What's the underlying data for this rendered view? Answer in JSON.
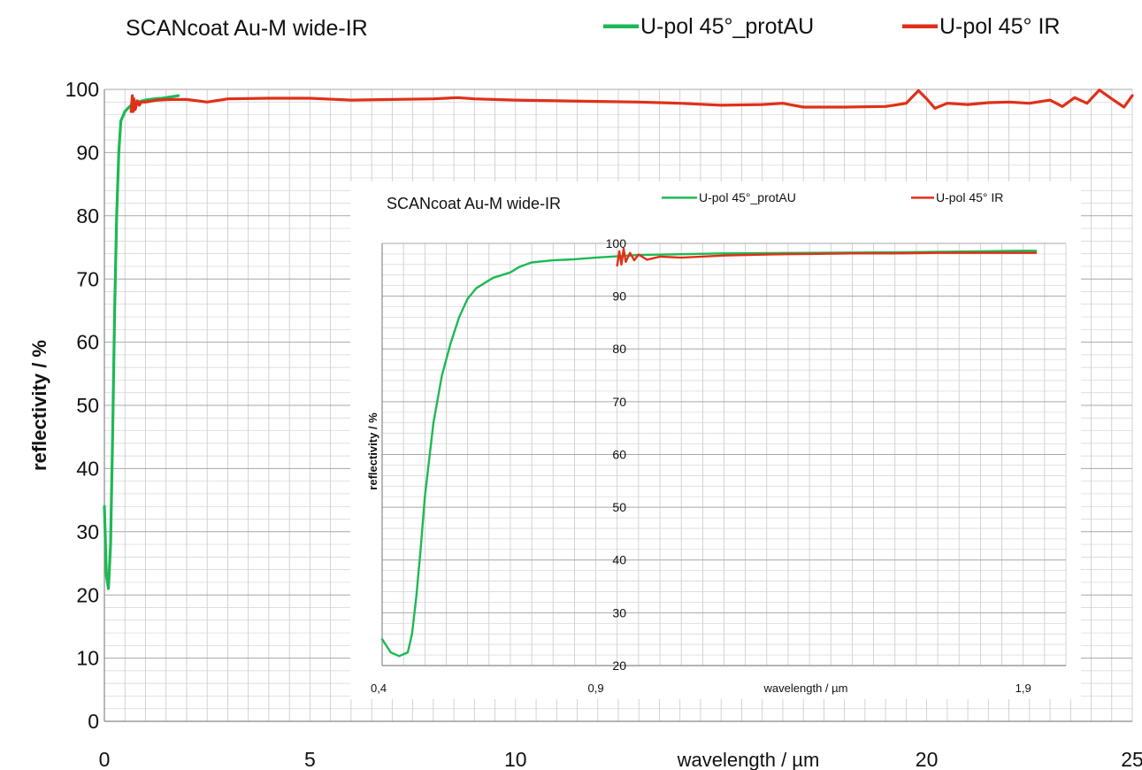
{
  "chart_data": [
    {
      "type": "line",
      "title": "SCANcoat Au-M wide-IR",
      "xlabel": "wavelength / µm",
      "ylabel": "reflectivity / %",
      "xlim": [
        0,
        25
      ],
      "ylim": [
        0,
        100
      ],
      "grid": true,
      "legend": "top-right",
      "x_ticks": [
        {
          "value": 0,
          "label": "0"
        },
        {
          "value": 5,
          "label": "5"
        },
        {
          "value": 10,
          "label": "10"
        },
        {
          "value": 20,
          "label": "20"
        },
        {
          "value": 25,
          "label": "25"
        }
      ],
      "y_ticks": [
        {
          "value": 0,
          "label": "0"
        },
        {
          "value": 10,
          "label": "10"
        },
        {
          "value": 20,
          "label": "20"
        },
        {
          "value": 30,
          "label": "30"
        },
        {
          "value": 40,
          "label": "40"
        },
        {
          "value": 50,
          "label": "50"
        },
        {
          "value": 60,
          "label": "60"
        },
        {
          "value": 70,
          "label": "70"
        },
        {
          "value": 80,
          "label": "80"
        },
        {
          "value": 90,
          "label": "90"
        },
        {
          "value": 100,
          "label": "100"
        }
      ],
      "series": [
        {
          "name": "U-pol 45°_protAU",
          "color": "#1db954",
          "x": [
            0.0,
            0.05,
            0.1,
            0.15,
            0.2,
            0.25,
            0.3,
            0.35,
            0.4,
            0.5,
            0.6,
            0.7,
            0.8,
            1.0,
            1.2,
            1.4,
            1.6,
            1.8
          ],
          "y": [
            34,
            23,
            21,
            28,
            45,
            65,
            80,
            90,
            95,
            96.5,
            97.2,
            97.8,
            98,
            98.3,
            98.5,
            98.6,
            98.8,
            99
          ]
        },
        {
          "name": "U-pol 45° IR",
          "color": "#e03018",
          "x": [
            0.65,
            0.68,
            0.7,
            0.72,
            0.75,
            0.8,
            0.85,
            0.9,
            1.0,
            1.3,
            1.6,
            2.0,
            2.5,
            3,
            4,
            5,
            6,
            7,
            8,
            8.6,
            9,
            10,
            11,
            12,
            13,
            14,
            15,
            16,
            16.5,
            17,
            18,
            19,
            19.5,
            19.8,
            20.0,
            20.2,
            20.5,
            21,
            21.5,
            22,
            22.5,
            23,
            23.3,
            23.6,
            23.9,
            24.2,
            24.5,
            24.8,
            25.0
          ],
          "y": [
            96.5,
            99,
            96.5,
            98.5,
            96.8,
            98.2,
            97.5,
            98,
            98,
            98.3,
            98.4,
            98.4,
            98,
            98.5,
            98.6,
            98.6,
            98.3,
            98.4,
            98.5,
            98.7,
            98.5,
            98.3,
            98.2,
            98.1,
            98,
            97.8,
            97.5,
            97.6,
            97.8,
            97.2,
            97.2,
            97.3,
            97.8,
            99.8,
            98.5,
            97,
            97.8,
            97.6,
            97.9,
            98,
            97.8,
            98.3,
            97.3,
            98.7,
            97.8,
            99.9,
            98.5,
            97.2,
            99
          ]
        }
      ]
    },
    {
      "type": "line",
      "title": "SCANcoat Au-M wide-IR",
      "xlabel": "wavelength / µm",
      "ylabel": "reflectivity / %",
      "xlim": [
        0.4,
        2.0
      ],
      "ylim": [
        20,
        100
      ],
      "grid": true,
      "legend": "top-right",
      "x_ticks": [
        {
          "value": 0.4,
          "label": "0,4"
        },
        {
          "value": 0.9,
          "label": "0,9"
        },
        {
          "value": 1.9,
          "label": "1,9"
        }
      ],
      "y_ticks": [
        {
          "value": 20,
          "label": "20"
        },
        {
          "value": 30,
          "label": "30"
        },
        {
          "value": 40,
          "label": "40"
        },
        {
          "value": 50,
          "label": "50"
        },
        {
          "value": 60,
          "label": "60"
        },
        {
          "value": 70,
          "label": "70"
        },
        {
          "value": 80,
          "label": "80"
        },
        {
          "value": 90,
          "label": "90"
        },
        {
          "value": 100,
          "label": "100"
        }
      ],
      "series": [
        {
          "name": "U-pol 45°_protAU",
          "color": "#1db954",
          "x": [
            0.4,
            0.42,
            0.44,
            0.46,
            0.47,
            0.48,
            0.49,
            0.5,
            0.52,
            0.54,
            0.56,
            0.58,
            0.6,
            0.62,
            0.64,
            0.66,
            0.68,
            0.7,
            0.72,
            0.75,
            0.8,
            0.85,
            0.9,
            1.0,
            1.2,
            1.4,
            1.6,
            1.8,
            1.9,
            1.93
          ],
          "y": [
            25,
            22.5,
            21.8,
            22.5,
            26,
            33,
            42,
            52,
            66,
            75,
            81,
            86,
            89.5,
            91.5,
            92.5,
            93.5,
            94,
            94.5,
            95.5,
            96.4,
            96.8,
            97,
            97.3,
            97.8,
            98.1,
            98.2,
            98.3,
            98.5,
            98.6,
            98.6
          ]
        },
        {
          "name": "U-pol 45° IR",
          "color": "#e03018",
          "x": [
            0.95,
            0.955,
            0.96,
            0.965,
            0.97,
            0.98,
            0.99,
            1.0,
            1.02,
            1.05,
            1.1,
            1.2,
            1.3,
            1.4,
            1.5,
            1.6,
            1.7,
            1.8,
            1.9,
            1.93
          ],
          "y": [
            95.8,
            98.5,
            96,
            99,
            96.5,
            98.2,
            96.8,
            97.9,
            96.9,
            97.5,
            97.3,
            97.7,
            97.9,
            98,
            98.1,
            98.1,
            98.2,
            98.2,
            98.2,
            98.2
          ]
        }
      ]
    }
  ]
}
